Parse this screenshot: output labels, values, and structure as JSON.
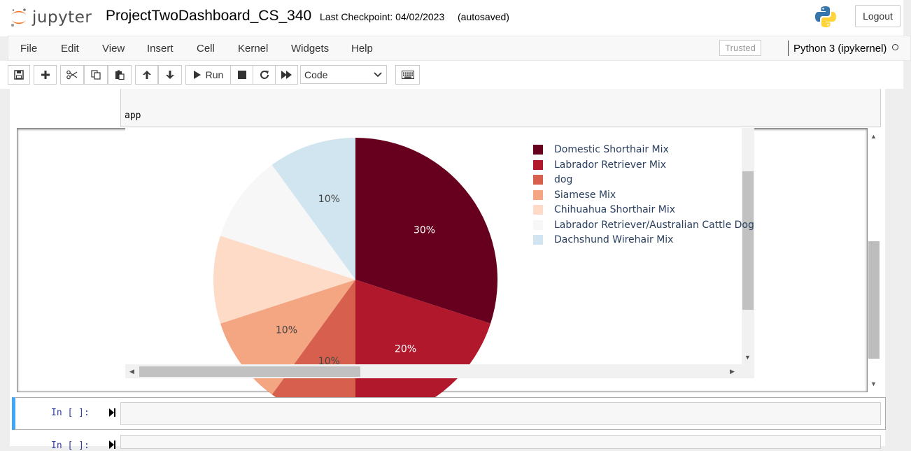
{
  "header": {
    "logo_text": "jupyter",
    "notebook_name": "ProjectTwoDashboard_CS_340",
    "checkpoint": "Last Checkpoint: 04/02/2023",
    "autosave_status": "(autosaved)",
    "logout_label": "Logout"
  },
  "menu": {
    "items": [
      "File",
      "Edit",
      "View",
      "Insert",
      "Cell",
      "Kernel",
      "Widgets",
      "Help"
    ],
    "trusted_label": "Trusted",
    "kernel_name": "Python 3 (ipykernel)"
  },
  "toolbar": {
    "run_label": "Run",
    "cell_type": "Code"
  },
  "cells": {
    "app_text": "app",
    "prompt_1": "In [ ]:",
    "prompt_2": "In [ ]:"
  },
  "chart_data": {
    "type": "pie",
    "categories": [
      "Domestic Shorthair Mix",
      "Labrador Retriever Mix",
      "dog",
      "Siamese Mix",
      "Chihuahua Shorthair Mix",
      "Labrador Retriever/Australian Cattle Dog",
      "Dachshund Wirehair Mix"
    ],
    "values": [
      30,
      20,
      10,
      10,
      10,
      10,
      10
    ],
    "labels": [
      "30%",
      "20%",
      "10%",
      "10%",
      "",
      "",
      "10%"
    ],
    "colors": [
      "#67001f",
      "#b2182b",
      "#d6604d",
      "#f4a582",
      "#fddbc7",
      "#f7f7f7",
      "#d1e5f0"
    ],
    "legend_placement": "top-right"
  }
}
